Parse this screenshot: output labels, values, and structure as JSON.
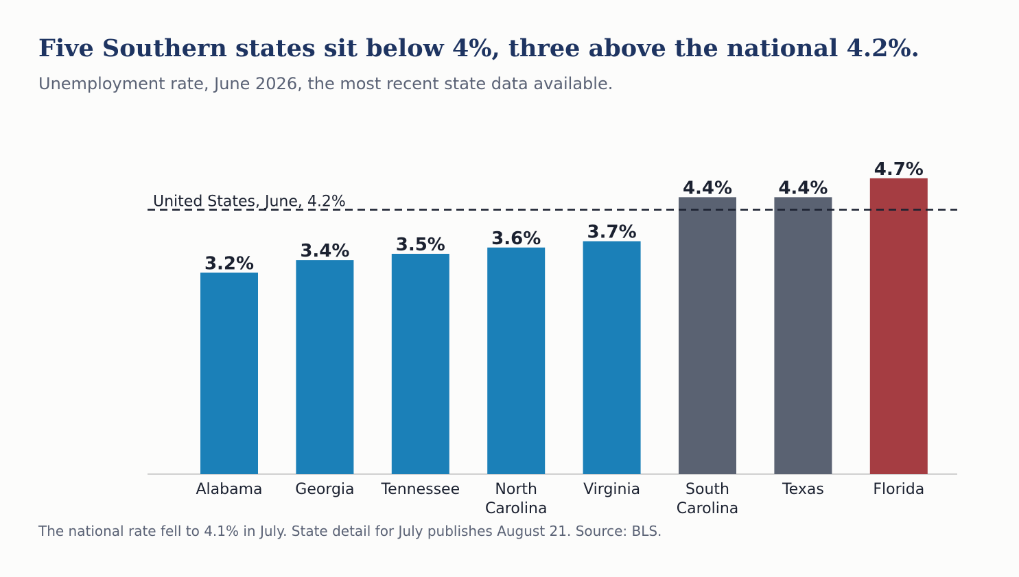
{
  "header": {
    "title": "Five Southern states sit below 4%, three above the national 4.2%.",
    "subtitle": "Unemployment rate, June 2026, the most recent state data available."
  },
  "footer": {
    "note": "The national rate fell to 4.1% in July. State detail for July publishes August 21. Source: BLS."
  },
  "chart_data": {
    "type": "bar",
    "title": "Five Southern states sit below 4%, three above the national 4.2%.",
    "subtitle": "Unemployment rate, June 2026, the most recent state data available.",
    "xlabel": "",
    "ylabel": "",
    "ylim": [
      0,
      5.2
    ],
    "grid": false,
    "legend": "none",
    "categories": [
      "Alabama",
      "Georgia",
      "Tennessee",
      "North Carolina",
      "Virginia",
      "South Carolina",
      "Texas",
      "Florida"
    ],
    "category_lines": [
      [
        "Alabama"
      ],
      [
        "Georgia"
      ],
      [
        "Tennessee"
      ],
      [
        "North",
        "Carolina"
      ],
      [
        "Virginia"
      ],
      [
        "South",
        "Carolina"
      ],
      [
        "Texas"
      ],
      [
        "Florida"
      ]
    ],
    "values": [
      3.2,
      3.4,
      3.5,
      3.6,
      3.7,
      4.4,
      4.4,
      4.7
    ],
    "value_labels": [
      "3.2%",
      "3.4%",
      "3.5%",
      "3.6%",
      "3.7%",
      "4.4%",
      "4.4%",
      "4.7%"
    ],
    "colors": [
      "#1b80b8",
      "#1b80b8",
      "#1b80b8",
      "#1b80b8",
      "#1b80b8",
      "#5a6272",
      "#5a6272",
      "#a53d42"
    ],
    "reference_line": {
      "value": 4.2,
      "label": "United States, June, 4.2%",
      "style": "dashed",
      "color": "#1b2130"
    },
    "baseline_color": "#d0d0d0"
  }
}
